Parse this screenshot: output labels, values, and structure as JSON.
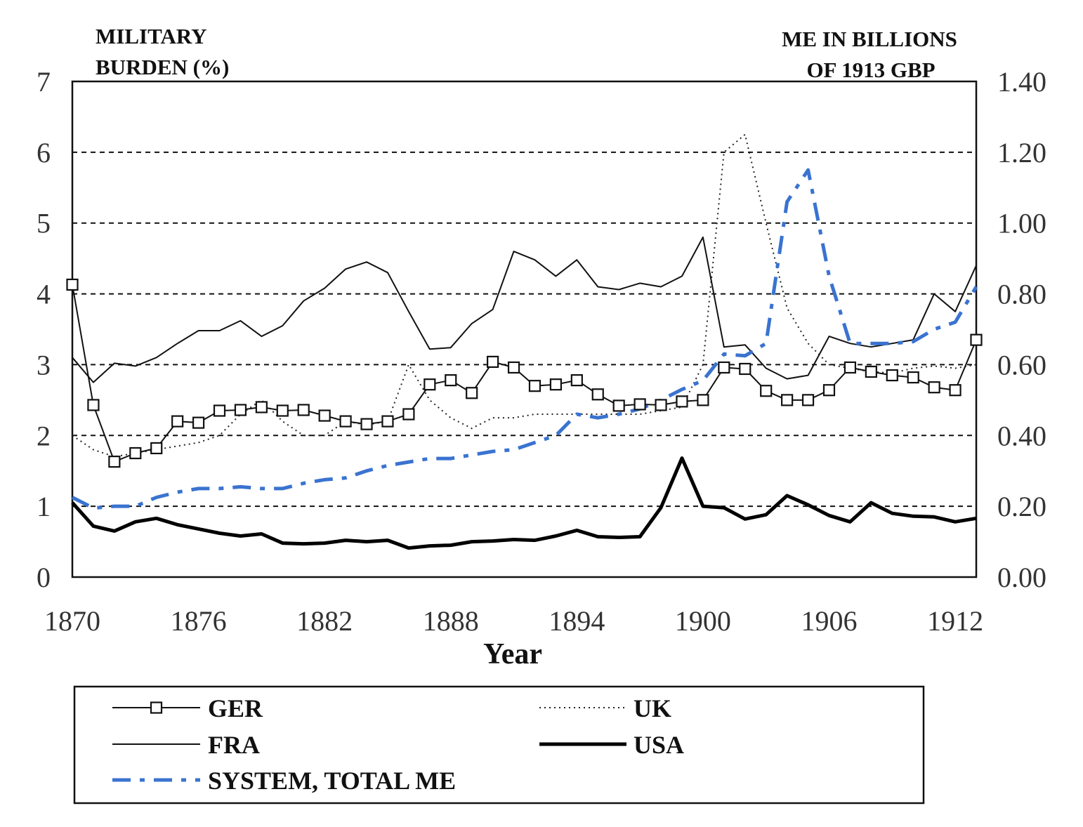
{
  "chart_data": {
    "type": "line",
    "left_axis_title": [
      "MILITARY",
      "BURDEN (%)"
    ],
    "right_axis_title": [
      "ME IN BILLIONS",
      "OF 1913 GBP"
    ],
    "xlabel": "Year",
    "xlim": [
      1870,
      1913
    ],
    "x_ticks": [
      1870,
      1876,
      1882,
      1888,
      1894,
      1900,
      1906,
      1912
    ],
    "ylim_left": [
      0,
      7
    ],
    "y_ticks_left": [
      0,
      1,
      2,
      3,
      4,
      5,
      6,
      7
    ],
    "ylim_right": [
      0,
      1.4
    ],
    "y_ticks_right": [
      "0.00",
      "0.20",
      "0.40",
      "0.60",
      "0.80",
      "1.00",
      "1.20",
      "1.40"
    ],
    "grid": "horizontal dashed",
    "legend_position": "bottom",
    "x": [
      1870,
      1871,
      1872,
      1873,
      1874,
      1875,
      1876,
      1877,
      1878,
      1879,
      1880,
      1881,
      1882,
      1883,
      1884,
      1885,
      1886,
      1887,
      1888,
      1889,
      1890,
      1891,
      1892,
      1893,
      1894,
      1895,
      1896,
      1897,
      1898,
      1899,
      1900,
      1901,
      1902,
      1903,
      1904,
      1905,
      1906,
      1907,
      1908,
      1909,
      1910,
      1911,
      1912,
      1913
    ],
    "series": [
      {
        "name": "GER",
        "axis": "left",
        "color": "#111111",
        "style": "solid-square-markers",
        "values": [
          4.13,
          2.43,
          1.63,
          1.75,
          1.82,
          2.2,
          2.18,
          2.35,
          2.36,
          2.4,
          2.35,
          2.36,
          2.28,
          2.2,
          2.16,
          2.2,
          2.3,
          2.72,
          2.78,
          2.6,
          3.04,
          2.96,
          2.7,
          2.72,
          2.78,
          2.58,
          2.42,
          2.44,
          2.43,
          2.48,
          2.5,
          2.96,
          2.94,
          2.63,
          2.5,
          2.5,
          2.64,
          2.96,
          2.9,
          2.85,
          2.82,
          2.68,
          2.64,
          3.35
        ]
      },
      {
        "name": "UK",
        "axis": "left",
        "color": "#222222",
        "style": "dotted",
        "values": [
          2.0,
          1.8,
          1.7,
          1.75,
          1.8,
          1.85,
          1.9,
          2.0,
          2.3,
          2.5,
          2.2,
          2.0,
          2.0,
          2.2,
          2.15,
          2.2,
          3.0,
          2.5,
          2.25,
          2.1,
          2.25,
          2.25,
          2.3,
          2.3,
          2.3,
          2.3,
          2.3,
          2.3,
          2.35,
          2.4,
          3.0,
          6.0,
          6.25,
          5.0,
          3.8,
          3.3,
          3.0,
          2.95,
          2.9,
          2.88,
          2.95,
          2.98,
          2.95,
          3.0
        ]
      },
      {
        "name": "FRA",
        "axis": "left",
        "color": "#111111",
        "style": "solid-thin",
        "values": [
          3.1,
          2.75,
          3.02,
          2.98,
          3.1,
          3.3,
          3.48,
          3.48,
          3.62,
          3.4,
          3.55,
          3.9,
          4.08,
          4.35,
          4.45,
          4.3,
          3.75,
          3.22,
          3.24,
          3.58,
          3.78,
          4.6,
          4.48,
          4.25,
          4.48,
          4.1,
          4.06,
          4.15,
          4.1,
          4.25,
          4.8,
          3.25,
          3.28,
          2.95,
          2.8,
          2.85,
          3.4,
          3.3,
          3.25,
          3.3,
          3.35,
          4.0,
          3.75,
          4.4
        ]
      },
      {
        "name": "USA",
        "axis": "left",
        "color": "#000000",
        "style": "solid-thick",
        "values": [
          1.05,
          0.72,
          0.65,
          0.78,
          0.83,
          0.74,
          0.68,
          0.62,
          0.58,
          0.61,
          0.48,
          0.47,
          0.48,
          0.52,
          0.5,
          0.52,
          0.41,
          0.44,
          0.45,
          0.5,
          0.51,
          0.53,
          0.52,
          0.58,
          0.66,
          0.57,
          0.56,
          0.57,
          0.98,
          1.68,
          1.0,
          0.98,
          0.82,
          0.88,
          1.15,
          1.02,
          0.87,
          0.78,
          1.05,
          0.9,
          0.86,
          0.85,
          0.78,
          0.83
        ]
      },
      {
        "name": "SYSTEM, TOTAL ME",
        "axis": "right",
        "color": "#3a73d0",
        "style": "dash-dot",
        "values": [
          0.225,
          0.195,
          0.2,
          0.2,
          0.225,
          0.24,
          0.25,
          0.25,
          0.255,
          0.25,
          0.25,
          0.265,
          0.275,
          0.28,
          0.3,
          0.315,
          0.325,
          0.335,
          0.335,
          0.345,
          0.355,
          0.36,
          0.38,
          0.4,
          0.46,
          0.45,
          0.46,
          0.475,
          0.5,
          0.53,
          0.555,
          0.63,
          0.625,
          0.66,
          1.06,
          1.15,
          0.85,
          0.66,
          0.66,
          0.66,
          0.665,
          0.7,
          0.72,
          0.82
        ]
      }
    ]
  }
}
